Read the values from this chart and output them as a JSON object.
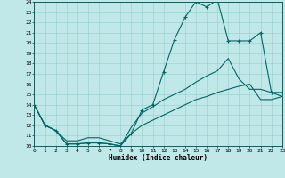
{
  "xlabel": "Humidex (Indice chaleur)",
  "bg_color": "#c0e8e8",
  "grid_color": "#98cccc",
  "line_color": "#006666",
  "xlim": [
    0,
    23
  ],
  "ylim": [
    10,
    24
  ],
  "xticks": [
    0,
    1,
    2,
    3,
    4,
    5,
    6,
    7,
    8,
    9,
    10,
    11,
    12,
    13,
    14,
    15,
    16,
    17,
    18,
    19,
    20,
    21,
    22,
    23
  ],
  "yticks": [
    10,
    11,
    12,
    13,
    14,
    15,
    16,
    17,
    18,
    19,
    20,
    21,
    22,
    23,
    24
  ],
  "curve1_x": [
    0,
    1,
    2,
    3,
    4,
    5,
    6,
    7,
    8,
    9,
    10,
    11,
    12,
    13,
    14,
    15,
    16,
    17,
    18,
    19,
    20,
    21,
    22,
    23
  ],
  "curve1_y": [
    14,
    12,
    11.5,
    10.2,
    10.2,
    10.3,
    10.3,
    10.2,
    10.0,
    11.2,
    13.5,
    14.0,
    17.2,
    20.3,
    22.5,
    24.0,
    23.5,
    24.2,
    20.2,
    20.2,
    20.2,
    21.0,
    15.2,
    15.2
  ],
  "curve2_x": [
    0,
    1,
    2,
    3,
    4,
    5,
    6,
    7,
    8,
    9,
    10,
    11,
    12,
    13,
    14,
    15,
    16,
    17,
    18,
    19,
    20,
    21,
    22,
    23
  ],
  "curve2_y": [
    14,
    12,
    11.5,
    10.2,
    10.2,
    10.3,
    10.3,
    10.2,
    10.0,
    11.8,
    13.2,
    13.8,
    14.5,
    15.0,
    15.5,
    16.2,
    16.8,
    17.3,
    18.5,
    16.5,
    15.5,
    15.5,
    15.2,
    14.8
  ],
  "curve3_x": [
    0,
    1,
    2,
    3,
    4,
    5,
    6,
    7,
    8,
    9,
    10,
    11,
    12,
    13,
    14,
    15,
    16,
    17,
    18,
    19,
    20,
    21,
    22,
    23
  ],
  "curve3_y": [
    14,
    12,
    11.5,
    10.5,
    10.5,
    10.8,
    10.8,
    10.5,
    10.2,
    11.2,
    12.0,
    12.5,
    13.0,
    13.5,
    14.0,
    14.5,
    14.8,
    15.2,
    15.5,
    15.8,
    16.0,
    14.5,
    14.5,
    14.8
  ]
}
